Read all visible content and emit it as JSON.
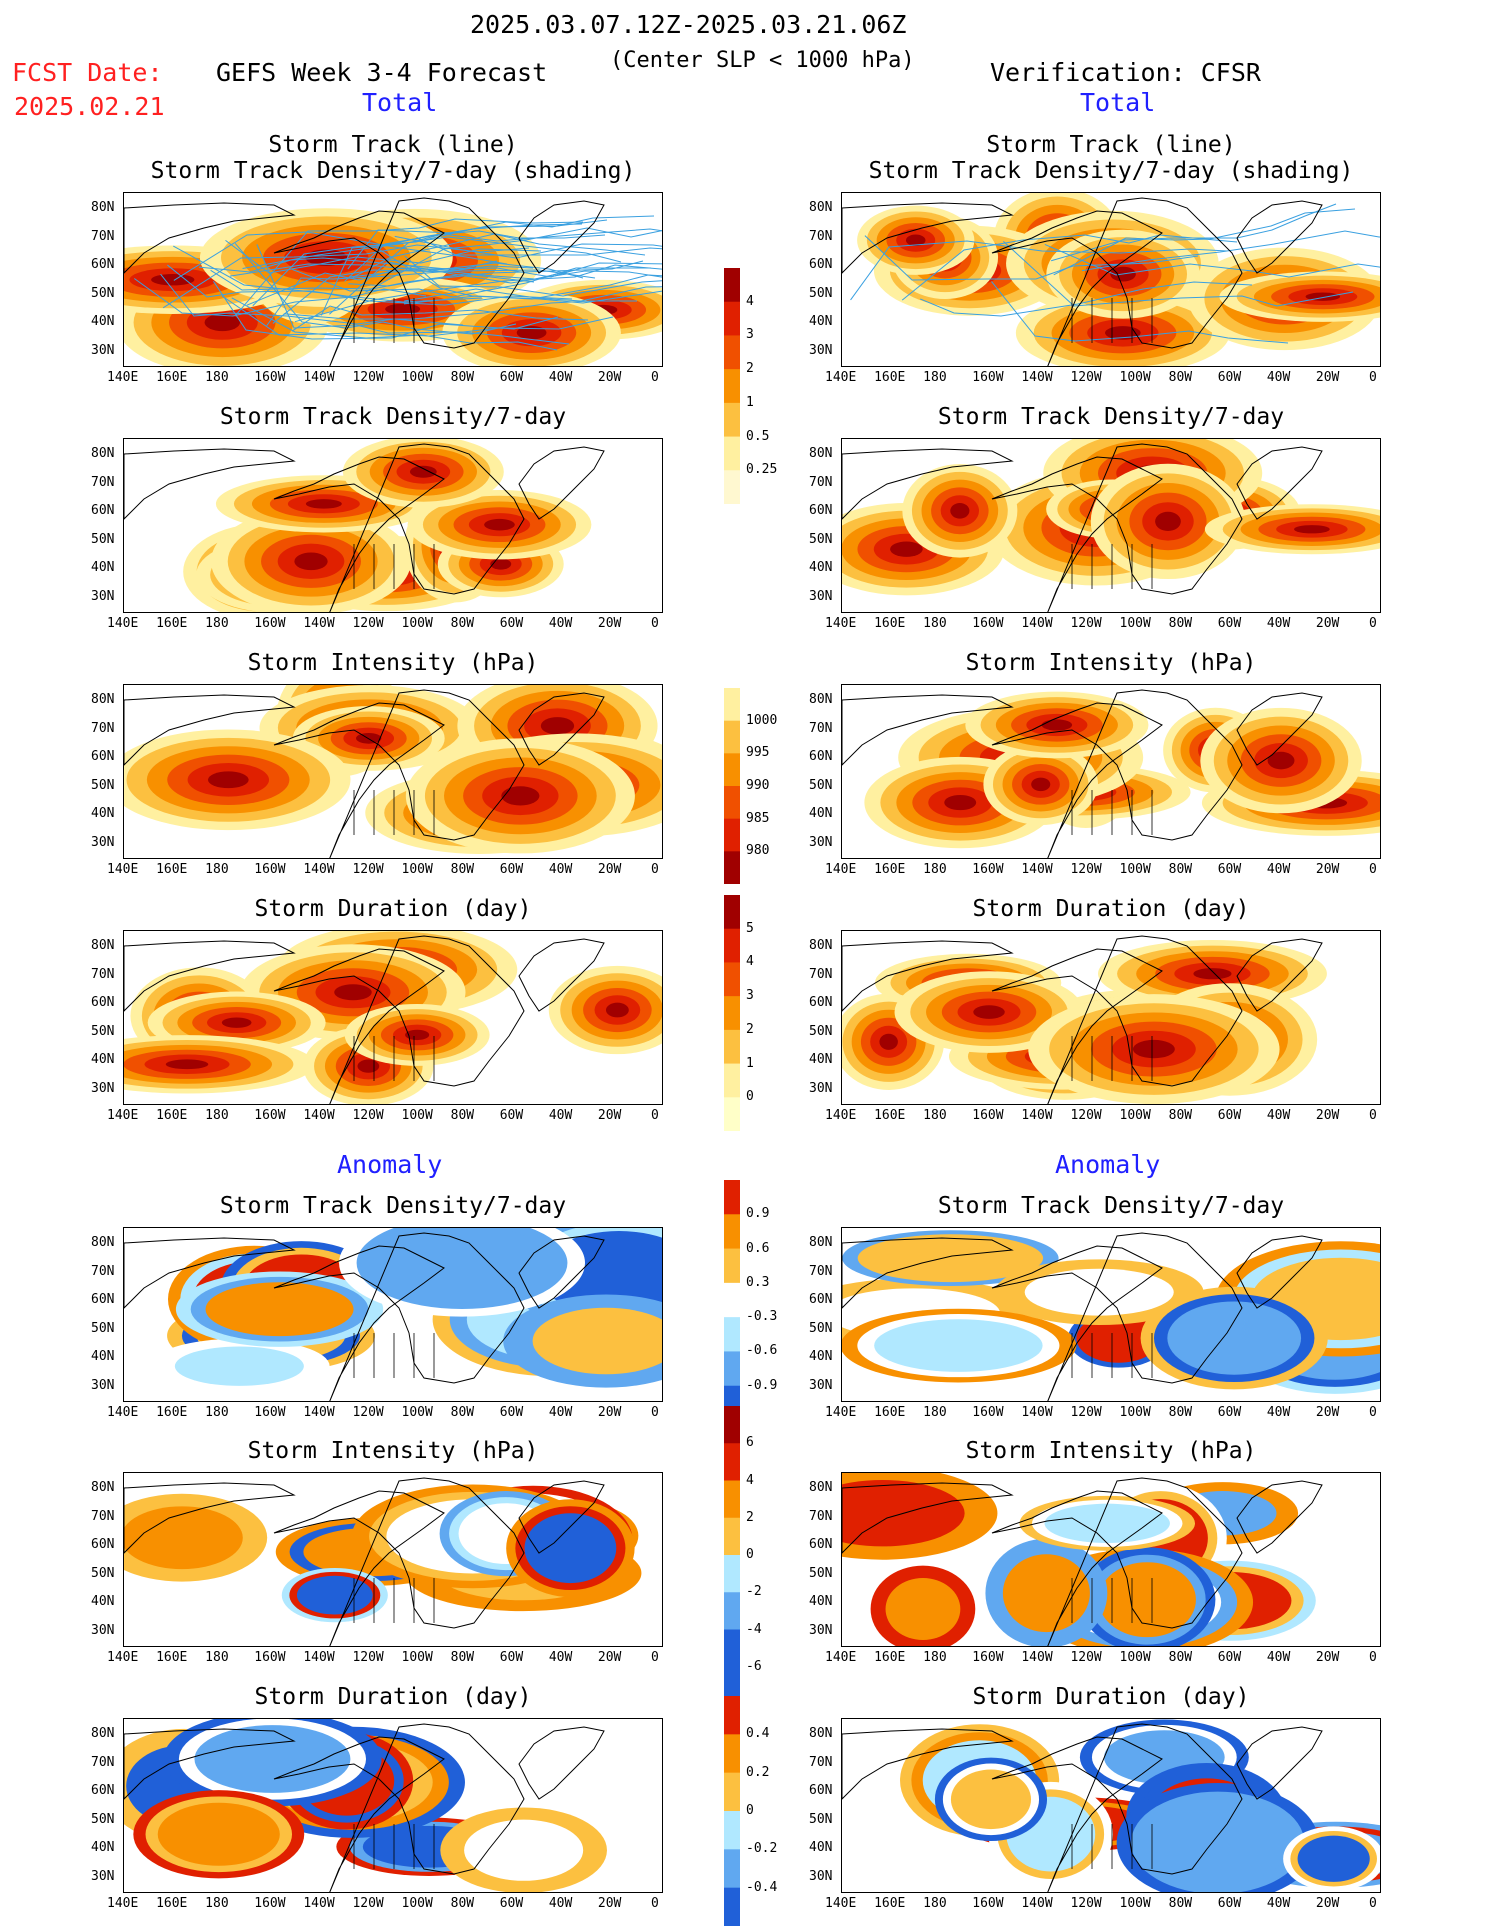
{
  "header": {
    "date_range": "2025.03.07.12Z-2025.03.21.06Z",
    "fcst_label": "FCST Date:",
    "fcst_date": "2025.02.21",
    "forecast_title": "GEFS Week 3-4 Forecast",
    "subtitle": "(Center SLP < 1000 hPa)",
    "verification": "Verification: CFSR",
    "left_total": "Total",
    "right_total": "Total",
    "left_anomaly": "Anomaly",
    "right_anomaly": "Anomaly"
  },
  "panels": {
    "track_title_1": "Storm Track (line)",
    "track_title_2": "Storm Track Density/7-day (shading)",
    "density_title": "Storm Track Density/7-day",
    "intensity_title": "Storm Intensity (hPa)",
    "duration_title": "Storm Duration (day)"
  },
  "axes": {
    "lat_labels": [
      "80N",
      "70N",
      "60N",
      "50N",
      "40N",
      "30N"
    ],
    "lon_labels": [
      "140E",
      "160E",
      "180",
      "160W",
      "140W",
      "120W",
      "100W",
      "80W",
      "60W",
      "40W",
      "20W",
      "0"
    ]
  },
  "colorbars": {
    "density": [
      "4",
      "3",
      "2",
      "1",
      "0.5",
      "0.25"
    ],
    "intensity": [
      "1000",
      "995",
      "990",
      "985",
      "980"
    ],
    "duration": [
      "5",
      "4",
      "3",
      "2",
      "1",
      "0"
    ],
    "density_anom": [
      "0.9",
      "0.6",
      "0.3",
      "-0.3",
      "-0.6",
      "-0.9"
    ],
    "intensity_anom": [
      "6",
      "4",
      "2",
      "0",
      "-2",
      "-4",
      "-6"
    ],
    "duration_anom": [
      "0.4",
      "0.2",
      "0",
      "-0.2",
      "-0.4"
    ]
  },
  "colors": {
    "dark_red": "#a00000",
    "red": "#e02000",
    "orange_red": "#f05000",
    "orange": "#f89000",
    "light_orange": "#fcc040",
    "pale_yellow": "#fff0a0",
    "light_blue": "#b0e8ff",
    "mid_blue": "#60a8f0",
    "blue": "#2060d8",
    "track_line": "#3aa0e0"
  }
}
